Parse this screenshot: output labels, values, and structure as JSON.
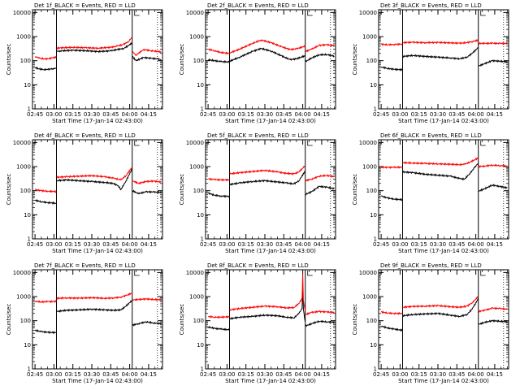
{
  "figure": {
    "background": "#ffffff",
    "event_color": "#000000",
    "lld_color": "#ff0000",
    "axis_color": "#000000"
  },
  "shared_axes": {
    "ylabel": "Counts/sec",
    "xlabel": "Start Time (17-Jan-14 02:43:00)",
    "x_tick_labels": [
      "02:45",
      "03:00",
      "03:15",
      "03:30",
      "03:45",
      "04:00",
      "04:15"
    ],
    "y_tick_labels": [
      "1",
      "10",
      "100",
      "1000",
      "10000"
    ],
    "xlim_minutes_from_start": [
      -2,
      101
    ],
    "ylim": [
      1,
      13000
    ],
    "yscale": "log"
  },
  "chart_data": [
    {
      "type": "line",
      "title": "Det 1f_BLACK = Events, RED = LLD",
      "gaps_at_minutes": [
        17,
        77
      ],
      "dotted_line_at_minute": 97,
      "series": [
        {
          "name": "Events",
          "color": "black",
          "x": [
            0,
            3,
            7,
            10,
            14,
            16.9,
            17.1,
            20,
            30,
            40,
            50,
            60,
            65,
            70,
            74,
            76.9,
            77.1,
            80,
            86,
            92,
            97,
            100
          ],
          "y": [
            52,
            46,
            43,
            43,
            47,
            48,
            240,
            255,
            270,
            260,
            240,
            255,
            290,
            320,
            420,
            560,
            150,
            100,
            135,
            125,
            118,
            110
          ]
        },
        {
          "name": "LLD",
          "color": "red",
          "x": [
            0,
            3,
            7,
            10,
            14,
            16.9,
            17.1,
            20,
            30,
            40,
            50,
            60,
            65,
            70,
            74,
            76.9,
            77.1,
            80,
            86,
            92,
            97,
            100
          ],
          "y": [
            150,
            128,
            120,
            118,
            132,
            140,
            330,
            340,
            360,
            345,
            330,
            360,
            400,
            470,
            620,
            950,
            240,
            170,
            290,
            260,
            240,
            230
          ]
        }
      ]
    },
    {
      "type": "line",
      "title": "Det 2f_BLACK = Events, RED = LLD",
      "gaps_at_minutes": [
        17,
        77
      ],
      "dotted_line_at_minute": 97,
      "series": [
        {
          "name": "Events",
          "color": "black",
          "x": [
            0,
            5,
            10,
            16.9,
            17.1,
            25,
            35,
            42,
            50,
            58,
            65,
            70,
            76.9,
            77.1,
            82,
            88,
            94,
            100
          ],
          "y": [
            110,
            100,
            92,
            88,
            95,
            140,
            240,
            320,
            250,
            160,
            110,
            120,
            160,
            90,
            130,
            175,
            180,
            155
          ]
        },
        {
          "name": "LLD",
          "color": "red",
          "x": [
            0,
            5,
            10,
            16.9,
            17.1,
            25,
            35,
            42,
            50,
            58,
            65,
            70,
            76.9,
            77.1,
            82,
            88,
            94,
            100
          ],
          "y": [
            300,
            260,
            220,
            200,
            210,
            300,
            520,
            720,
            560,
            380,
            290,
            310,
            400,
            240,
            300,
            430,
            460,
            420
          ]
        }
      ]
    },
    {
      "type": "line",
      "title": "Det 3f_BLACK = Events, RED = LLD",
      "gaps_at_minutes": [
        17,
        77
      ],
      "dotted_line_at_minute": 97,
      "series": [
        {
          "name": "Events",
          "color": "black",
          "x": [
            0,
            5,
            10,
            16.9,
            17.1,
            25,
            35,
            45,
            55,
            62,
            68,
            72,
            76.9,
            77.1,
            82,
            88,
            94,
            100
          ],
          "y": [
            55,
            48,
            44,
            42,
            150,
            165,
            150,
            140,
            130,
            120,
            140,
            200,
            350,
            60,
            75,
            100,
            95,
            90
          ]
        },
        {
          "name": "LLD",
          "color": "red",
          "x": [
            0,
            5,
            10,
            16.9,
            17.1,
            25,
            35,
            45,
            55,
            62,
            68,
            72,
            76.9,
            77.1,
            82,
            88,
            94,
            100
          ],
          "y": [
            480,
            460,
            470,
            490,
            560,
            580,
            560,
            570,
            550,
            530,
            560,
            620,
            700,
            520,
            520,
            530,
            520,
            520
          ]
        }
      ]
    },
    {
      "type": "line",
      "title": "Det 4f_BLACK = Events, RED = LLD",
      "gaps_at_minutes": [
        17,
        77
      ],
      "dotted_line_at_minute": 97,
      "series": [
        {
          "name": "Events",
          "color": "black",
          "x": [
            0,
            5,
            10,
            16.9,
            17.1,
            25,
            35,
            45,
            55,
            62,
            66,
            68,
            72,
            76.9,
            77.1,
            82,
            88,
            94,
            100
          ],
          "y": [
            40,
            35,
            32,
            30,
            260,
            280,
            260,
            240,
            220,
            200,
            160,
            110,
            250,
            800,
            100,
            75,
            90,
            88,
            85
          ]
        },
        {
          "name": "LLD",
          "color": "red",
          "x": [
            0,
            5,
            10,
            16.9,
            17.1,
            25,
            35,
            45,
            55,
            62,
            66,
            68,
            72,
            76.9,
            77.1,
            82,
            88,
            94,
            100
          ],
          "y": [
            110,
            100,
            95,
            92,
            360,
            380,
            400,
            420,
            380,
            330,
            300,
            280,
            420,
            950,
            260,
            200,
            240,
            250,
            230
          ]
        }
      ]
    },
    {
      "type": "line",
      "title": "Det 5f_BLACK = Events, RED = LLD",
      "gaps_at_minutes": [
        17,
        77
      ],
      "dotted_line_at_minute": 97,
      "series": [
        {
          "name": "Events",
          "color": "black",
          "x": [
            0,
            5,
            10,
            16.9,
            17.1,
            25,
            35,
            45,
            55,
            62,
            68,
            72,
            76.9,
            77.1,
            82,
            88,
            94,
            100
          ],
          "y": [
            80,
            65,
            60,
            58,
            180,
            210,
            240,
            260,
            230,
            210,
            190,
            260,
            650,
            70,
            90,
            150,
            140,
            120
          ]
        },
        {
          "name": "LLD",
          "color": "red",
          "x": [
            0,
            5,
            10,
            16.9,
            17.1,
            25,
            35,
            45,
            55,
            62,
            68,
            72,
            76.9,
            77.1,
            82,
            88,
            94,
            100
          ],
          "y": [
            310,
            290,
            280,
            280,
            500,
            560,
            620,
            700,
            600,
            520,
            500,
            600,
            1100,
            260,
            300,
            400,
            430,
            380
          ]
        }
      ]
    },
    {
      "type": "line",
      "title": "Det 6f_BLACK = Events, RED = LLD",
      "gaps_at_minutes": [
        17,
        77
      ],
      "dotted_line_at_minute": 97,
      "series": [
        {
          "name": "Events",
          "color": "black",
          "x": [
            0,
            5,
            10,
            16.9,
            17.1,
            25,
            35,
            45,
            55,
            62,
            66,
            70,
            74,
            76.9,
            77.1,
            82,
            88,
            94,
            100
          ],
          "y": [
            60,
            50,
            45,
            42,
            600,
            560,
            480,
            440,
            400,
            320,
            300,
            500,
            900,
            1400,
            95,
            120,
            170,
            150,
            130
          ]
        },
        {
          "name": "LLD",
          "color": "red",
          "x": [
            0,
            5,
            10,
            16.9,
            17.1,
            25,
            35,
            45,
            55,
            62,
            66,
            70,
            74,
            76.9,
            77.1,
            82,
            88,
            94,
            100
          ],
          "y": [
            950,
            920,
            930,
            940,
            1450,
            1400,
            1350,
            1300,
            1250,
            1200,
            1250,
            1500,
            1900,
            2300,
            1000,
            1050,
            1150,
            1100,
            1050
          ]
        }
      ]
    },
    {
      "type": "line",
      "title": "Det 7f_BLACK = Events, RED = LLD",
      "gaps_at_minutes": [
        17,
        77
      ],
      "dotted_line_at_minute": 97,
      "series": [
        {
          "name": "Events",
          "color": "black",
          "x": [
            0,
            5,
            10,
            16.9,
            17.1,
            25,
            35,
            45,
            55,
            62,
            68,
            72,
            76.9,
            77.1,
            82,
            88,
            94,
            100
          ],
          "y": [
            40,
            35,
            33,
            32,
            240,
            270,
            280,
            300,
            280,
            270,
            280,
            400,
            700,
            65,
            75,
            90,
            80,
            75
          ]
        },
        {
          "name": "LLD",
          "color": "red",
          "x": [
            0,
            5,
            10,
            16.9,
            17.1,
            25,
            35,
            45,
            55,
            62,
            68,
            72,
            76.9,
            77.1,
            82,
            88,
            94,
            100
          ],
          "y": [
            640,
            600,
            620,
            630,
            850,
            880,
            860,
            900,
            850,
            880,
            950,
            1100,
            1400,
            720,
            760,
            800,
            760,
            740
          ]
        }
      ]
    },
    {
      "type": "line",
      "title": "Det 8f_BLACK = Events, RED = LLD",
      "gaps_at_minutes": [
        17,
        77
      ],
      "dotted_line_at_minute": 97,
      "series": [
        {
          "name": "Events",
          "color": "black",
          "x": [
            0,
            5,
            10,
            16.9,
            17.1,
            25,
            35,
            45,
            55,
            62,
            68,
            72,
            74.5,
            75,
            75.5,
            76.9,
            77.1,
            82,
            88,
            94,
            100
          ],
          "y": [
            55,
            48,
            45,
            42,
            120,
            140,
            150,
            170,
            160,
            140,
            130,
            200,
            320,
            2200,
            300,
            90,
            60,
            75,
            95,
            90,
            85
          ]
        },
        {
          "name": "LLD",
          "color": "red",
          "x": [
            0,
            5,
            10,
            16.9,
            17.1,
            25,
            35,
            45,
            55,
            62,
            68,
            72,
            74.5,
            75,
            75.5,
            76.9,
            77.1,
            82,
            88,
            94,
            100
          ],
          "y": [
            150,
            140,
            140,
            145,
            280,
            320,
            360,
            400,
            380,
            340,
            350,
            520,
            850,
            9000,
            700,
            260,
            180,
            220,
            240,
            230,
            220
          ]
        }
      ]
    },
    {
      "type": "line",
      "title": "Det 9f_BLACK = Events, RED = LLD",
      "gaps_at_minutes": [
        17,
        77
      ],
      "dotted_line_at_minute": 97,
      "series": [
        {
          "name": "Events",
          "color": "black",
          "x": [
            0,
            5,
            10,
            16.9,
            17.1,
            25,
            35,
            45,
            55,
            62,
            68,
            72,
            76.9,
            77.1,
            82,
            88,
            94,
            100
          ],
          "y": [
            60,
            50,
            45,
            40,
            160,
            180,
            190,
            200,
            170,
            150,
            180,
            300,
            800,
            70,
            85,
            100,
            95,
            90
          ]
        },
        {
          "name": "LLD",
          "color": "red",
          "x": [
            0,
            5,
            10,
            16.9,
            17.1,
            25,
            35,
            45,
            55,
            62,
            68,
            72,
            76.9,
            77.1,
            82,
            88,
            94,
            100
          ],
          "y": [
            230,
            210,
            200,
            200,
            360,
            390,
            400,
            420,
            380,
            360,
            400,
            550,
            1000,
            240,
            270,
            330,
            320,
            300
          ]
        }
      ]
    }
  ]
}
